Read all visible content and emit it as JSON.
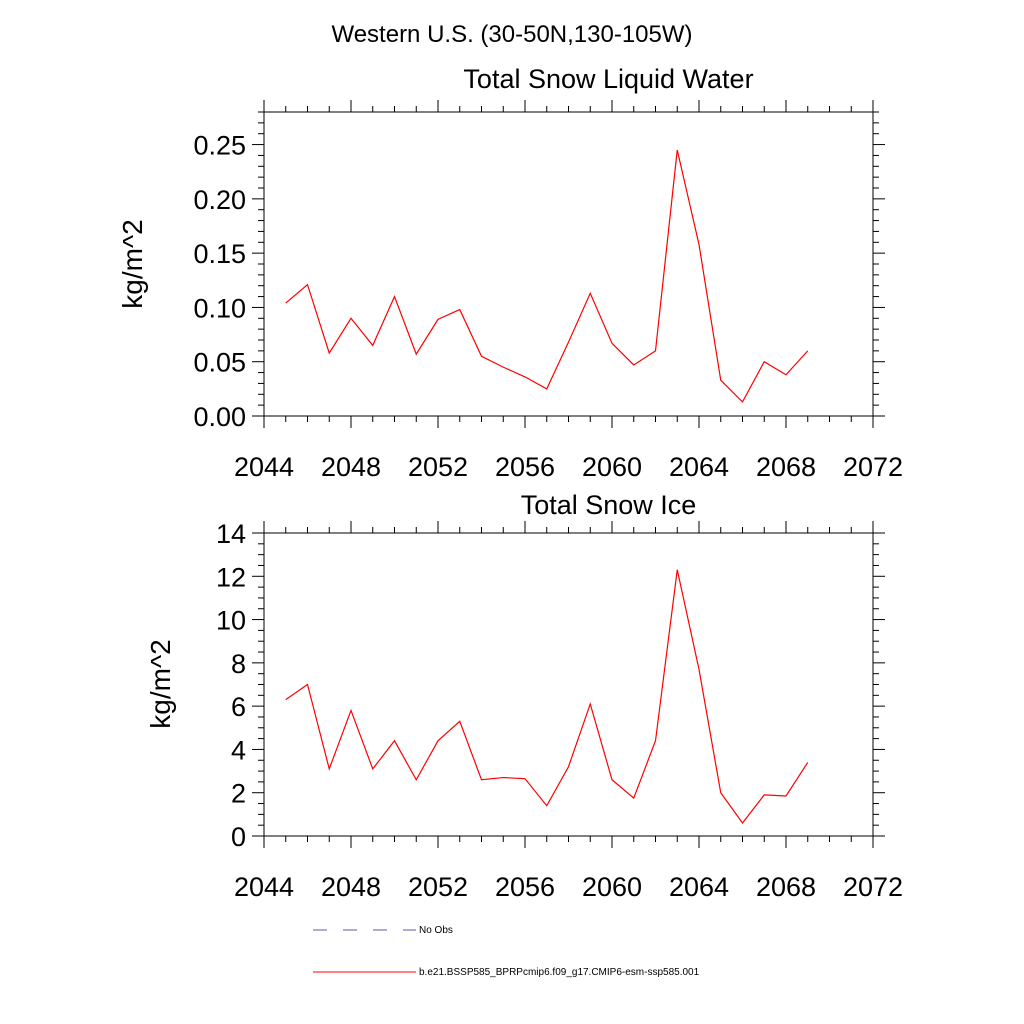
{
  "figure": {
    "suptitle": "Western U.S. (30-50N,130-105W)"
  },
  "legend": {
    "entries": [
      {
        "label": "No Obs",
        "color": "#5a5ab4",
        "dash": "dashed"
      },
      {
        "label": "b.e21.BSSP585_BPRPcmip6.f09_g17.CMIP6-esm-ssp585.001",
        "color": "#ff0000",
        "dash": "solid"
      }
    ]
  },
  "chart_data": [
    {
      "type": "line",
      "title": "Total Snow Liquid Water",
      "xlabel": "",
      "ylabel": "kg/m^2",
      "xlim": [
        2044,
        2072
      ],
      "ylim": [
        0,
        0.28
      ],
      "xticks": [
        2044,
        2048,
        2052,
        2056,
        2060,
        2064,
        2068,
        2072
      ],
      "xtick_labels": [
        "2044",
        "2048",
        "2052",
        "2056",
        "2060",
        "2064",
        "2068",
        "2072"
      ],
      "yticks": [
        0,
        0.05,
        0.1,
        0.15,
        0.2,
        0.25
      ],
      "ytick_labels": [
        "0.00",
        "0.05",
        "0.10",
        "0.15",
        "0.20",
        "0.25"
      ],
      "x": [
        2045,
        2046,
        2047,
        2048,
        2049,
        2050,
        2051,
        2052,
        2053,
        2054,
        2055,
        2056,
        2057,
        2058,
        2059,
        2060,
        2061,
        2062,
        2063,
        2064,
        2065,
        2066,
        2067,
        2068,
        2069
      ],
      "series": [
        {
          "color": "#ff0000",
          "values": [
            0.104,
            0.121,
            0.058,
            0.09,
            0.065,
            0.11,
            0.057,
            0.089,
            0.098,
            0.055,
            0.045,
            0.036,
            0.025,
            0.068,
            0.113,
            0.067,
            0.047,
            0.06,
            0.245,
            0.158,
            0.033,
            0.013,
            0.05,
            0.038,
            0.06
          ]
        }
      ]
    },
    {
      "type": "line",
      "title": "Total Snow Ice",
      "xlabel": "",
      "ylabel": "kg/m^2",
      "xlim": [
        2044,
        2072
      ],
      "ylim": [
        0,
        14
      ],
      "xticks": [
        2044,
        2048,
        2052,
        2056,
        2060,
        2064,
        2068,
        2072
      ],
      "xtick_labels": [
        "2044",
        "2048",
        "2052",
        "2056",
        "2060",
        "2064",
        "2068",
        "2072"
      ],
      "yticks": [
        0,
        2,
        4,
        6,
        8,
        10,
        12,
        14
      ],
      "ytick_labels": [
        "0",
        "2",
        "4",
        "6",
        "8",
        "10",
        "12",
        "14"
      ],
      "x": [
        2045,
        2046,
        2047,
        2048,
        2049,
        2050,
        2051,
        2052,
        2053,
        2054,
        2055,
        2056,
        2057,
        2058,
        2059,
        2060,
        2061,
        2062,
        2063,
        2064,
        2065,
        2066,
        2067,
        2068,
        2069
      ],
      "series": [
        {
          "color": "#ff0000",
          "values": [
            6.3,
            7.0,
            3.1,
            5.8,
            3.1,
            4.4,
            2.6,
            4.4,
            5.3,
            2.6,
            2.7,
            2.65,
            1.4,
            3.2,
            6.1,
            2.6,
            1.75,
            4.4,
            12.3,
            7.7,
            2.0,
            0.6,
            1.9,
            1.85,
            3.4
          ]
        }
      ]
    }
  ]
}
